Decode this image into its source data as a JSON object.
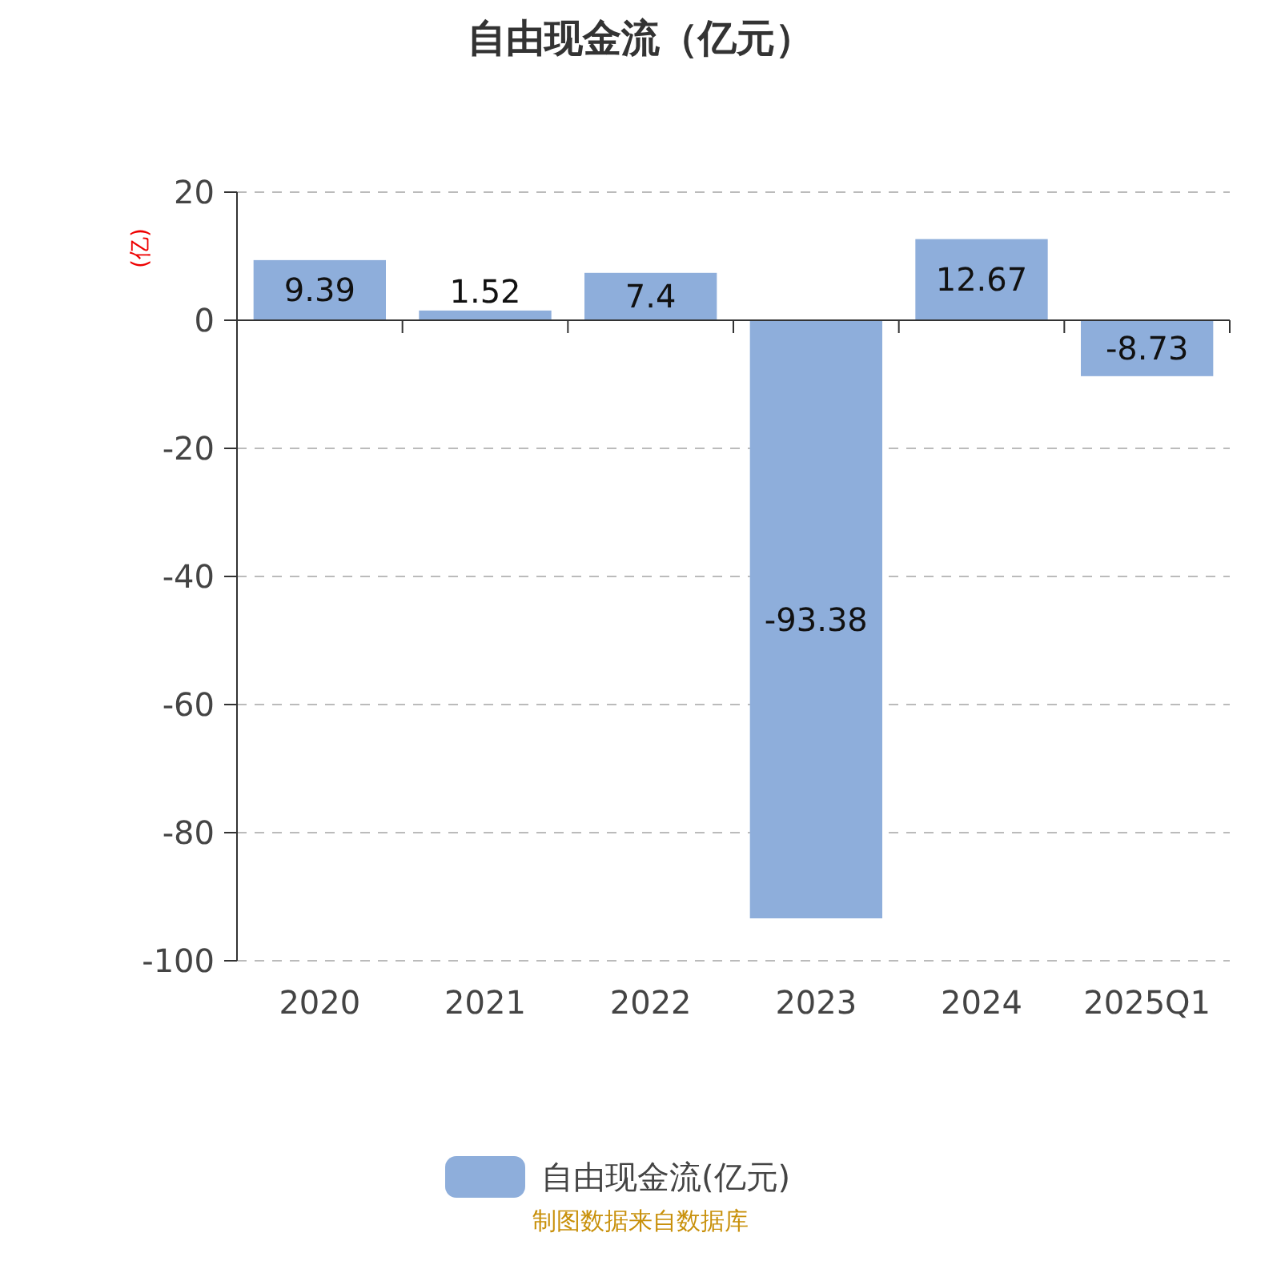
{
  "chart_data": {
    "type": "bar",
    "title": "自由现金流（亿元）",
    "ylabel": "(亿)",
    "categories": [
      "2020",
      "2021",
      "2022",
      "2023",
      "2024",
      "2025Q1"
    ],
    "series": [
      {
        "name": "自由现金流(亿元)",
        "color": "#8eaedb",
        "values": [
          9.39,
          1.52,
          7.4,
          -93.38,
          12.67,
          -8.73
        ]
      }
    ],
    "ylim": [
      -100,
      20
    ],
    "yticks": [
      -100,
      -80,
      -60,
      -40,
      -20,
      0,
      20
    ],
    "grid": "y",
    "legend": "bottom",
    "data_labels": true,
    "annotations": [
      "制图数据来自数据库"
    ]
  }
}
